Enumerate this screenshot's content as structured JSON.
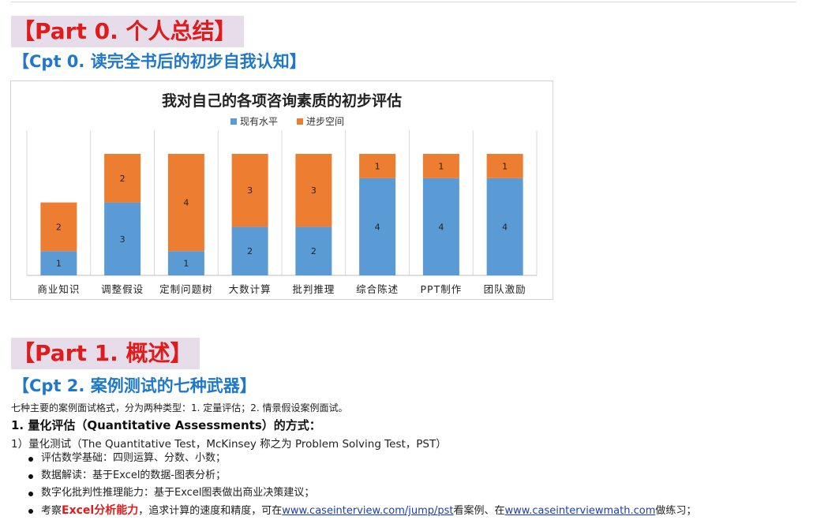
{
  "part0": {
    "title": "【Part 0. 个人总结】"
  },
  "cpt0": {
    "title": "【Cpt 0. 读完全书后的初步自我认知】"
  },
  "chart_data": {
    "type": "bar",
    "stacked": true,
    "title": "我对自己的各项咨询素质的初步评估",
    "legend_position": "top",
    "categories": [
      "商业知识",
      "调整假设",
      "定制问题树",
      "大数计算",
      "批判推理",
      "综合陈述",
      "PPT制作",
      "团队激励"
    ],
    "series": [
      {
        "name": "现有水平",
        "color": "#5b9bd5",
        "values": [
          1,
          3,
          1,
          2,
          2,
          4,
          4,
          4
        ]
      },
      {
        "name": "进步空间",
        "color": "#ed7d31",
        "values": [
          2,
          2,
          4,
          3,
          3,
          1,
          1,
          1
        ]
      }
    ],
    "ylim": [
      0,
      5.5
    ],
    "grid": false
  },
  "part1": {
    "title": "【Part 1. 概述】"
  },
  "cpt2": {
    "title": "【Cpt 2. 案例测试的七种武器】"
  },
  "intro": "七种主要的案例面试格式，分为两种类型：1. 定量评估；2. 情景假设案例面试。",
  "section1": {
    "heading": "1. 量化评估（Quantitative Assessments）的方式："
  },
  "item1": "1）量化测试（The Quantitative Test，McKinsey 称之为 Problem Solving Test，PST）",
  "bullets": {
    "b1": "评估数学基础：四则运算、分数、小数；",
    "b2": "数据解读：基于Excel的数据-图表分析；",
    "b3": "数字化批判性推理能力：基于Excel图表做出商业决策建议；",
    "b4": {
      "prefix": "考察",
      "highlight": "Excel分析能力",
      "middle": "，追求计算的速度和精度，可在",
      "link1": "www.caseinterview.com/jump/pst",
      "middle2": "看案例、在",
      "link2": "www.caseinterviewmath.com",
      "suffix": "做练习；"
    }
  }
}
